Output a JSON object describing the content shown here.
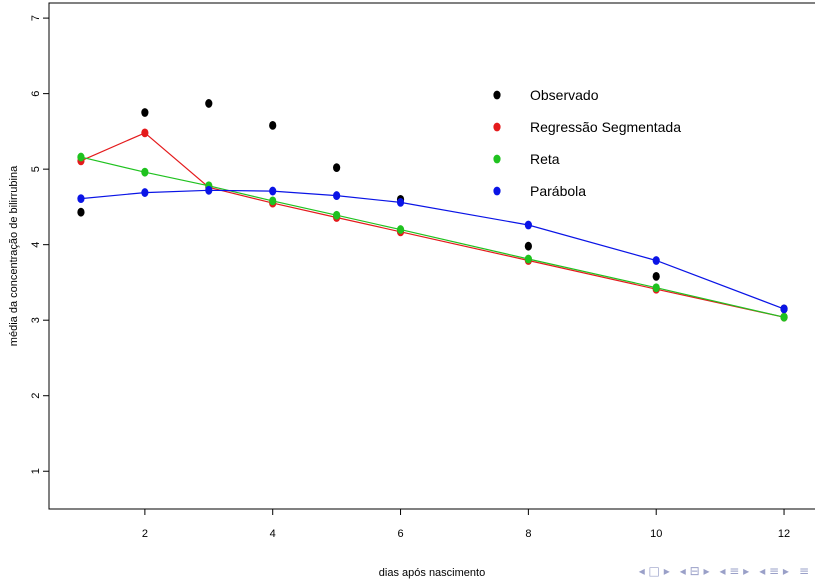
{
  "chart_data": {
    "type": "line",
    "xlabel": "dias após nascimento",
    "ylabel": "média da concentração de bilirrubina",
    "xlim": [
      0.5,
      12.5
    ],
    "ylim": [
      0.5,
      7.2
    ],
    "x_ticks": [
      2,
      4,
      6,
      8,
      10,
      12
    ],
    "y_ticks": [
      1,
      2,
      3,
      4,
      5,
      6,
      7
    ],
    "grid": false,
    "legend_position": "top-right",
    "series": [
      {
        "name": "Observado",
        "color": "#000000",
        "connected": false,
        "points": [
          [
            1,
            4.43
          ],
          [
            2,
            5.75
          ],
          [
            3,
            5.87
          ],
          [
            4,
            5.58
          ],
          [
            5,
            5.02
          ],
          [
            6,
            4.6
          ],
          [
            8,
            3.98
          ],
          [
            10,
            3.58
          ],
          [
            12,
            3.15
          ]
        ]
      },
      {
        "name": "Regressão Segmentada",
        "color": "#e41a1c",
        "connected": true,
        "points": [
          [
            1,
            5.11
          ],
          [
            2,
            5.48
          ],
          [
            3,
            4.76
          ],
          [
            4,
            4.55
          ],
          [
            5,
            4.36
          ],
          [
            6,
            4.17
          ],
          [
            8,
            3.79
          ],
          [
            10,
            3.41
          ],
          [
            12,
            3.04
          ]
        ]
      },
      {
        "name": "Reta",
        "color": "#1fc21f",
        "connected": true,
        "points": [
          [
            1,
            5.16
          ],
          [
            2,
            4.96
          ],
          [
            3,
            4.78
          ],
          [
            4,
            4.58
          ],
          [
            5,
            4.39
          ],
          [
            6,
            4.2
          ],
          [
            8,
            3.81
          ],
          [
            10,
            3.43
          ],
          [
            12,
            3.04
          ]
        ]
      },
      {
        "name": "Parábola",
        "color": "#0a14e6",
        "connected": true,
        "points": [
          [
            1,
            4.61
          ],
          [
            2,
            4.69
          ],
          [
            3,
            4.72
          ],
          [
            4,
            4.71
          ],
          [
            5,
            4.65
          ],
          [
            6,
            4.56
          ],
          [
            8,
            4.26
          ],
          [
            10,
            3.79
          ],
          [
            12,
            3.15
          ]
        ]
      }
    ]
  },
  "nav": {
    "icons": [
      "slide-prev-next",
      "frame-prev-next",
      "subsection-prev-next",
      "section-prev-next",
      "search-menu"
    ],
    "glyphs": [
      "◂ □ ▸",
      "◂ ⊟ ▸",
      "◂ ≡ ▸",
      "◂ ≡ ▸",
      "≡"
    ]
  }
}
